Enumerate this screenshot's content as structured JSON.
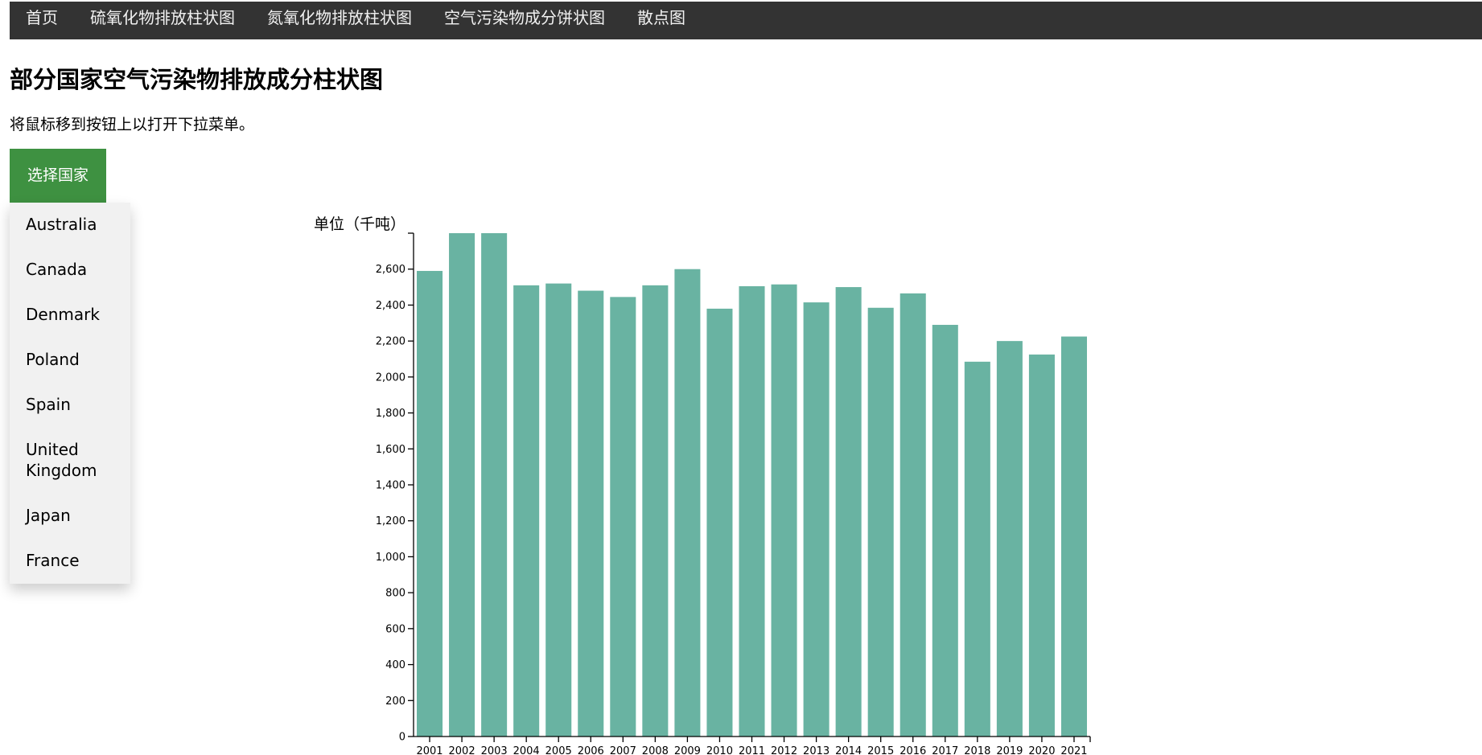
{
  "nav": {
    "items": [
      {
        "label": "首页"
      },
      {
        "label": "硫氧化物排放柱状图"
      },
      {
        "label": "氮氧化物排放柱状图"
      },
      {
        "label": "空气污染物成分饼状图"
      },
      {
        "label": "散点图"
      }
    ]
  },
  "page": {
    "title": "部分国家空气污染物排放成分柱状图",
    "hint": "将鼠标移到按钮上以打开下拉菜单。"
  },
  "country_select": {
    "button_label": "选择国家",
    "options": [
      {
        "label": "Australia"
      },
      {
        "label": "Canada"
      },
      {
        "label": "Denmark"
      },
      {
        "label": "Poland"
      },
      {
        "label": "Spain"
      },
      {
        "label": "United Kingdom"
      },
      {
        "label": "Japan"
      },
      {
        "label": "France"
      }
    ]
  },
  "colors": {
    "navbar": "#333333",
    "nav_text": "#f2f2f2",
    "button": "#3e9141",
    "dropdown_bg": "#f1f1f1",
    "bar": "#69b3a2"
  },
  "chart_data": {
    "type": "bar",
    "ylabel": "单位（千吨）",
    "ylim": [
      0,
      2800
    ],
    "yticks": [
      0,
      200,
      400,
      600,
      800,
      1000,
      1200,
      1400,
      1600,
      1800,
      2000,
      2200,
      2400,
      2600
    ],
    "ytick_labels": [
      "0",
      "200",
      "400",
      "600",
      "800",
      "1,000",
      "1,200",
      "1,400",
      "1,600",
      "1,800",
      "2,000",
      "2,200",
      "2,400",
      "2,600"
    ],
    "categories": [
      "2001",
      "2002",
      "2003",
      "2004",
      "2005",
      "2006",
      "2007",
      "2008",
      "2009",
      "2010",
      "2011",
      "2012",
      "2013",
      "2014",
      "2015",
      "2016",
      "2017",
      "2018",
      "2019",
      "2020",
      "2021"
    ],
    "values": [
      2590,
      2800,
      2800,
      2510,
      2520,
      2480,
      2445,
      2510,
      2600,
      2380,
      2505,
      2515,
      2415,
      2500,
      2385,
      2465,
      2290,
      2085,
      2200,
      2125,
      2225
    ],
    "grid": false,
    "legend": "none"
  }
}
